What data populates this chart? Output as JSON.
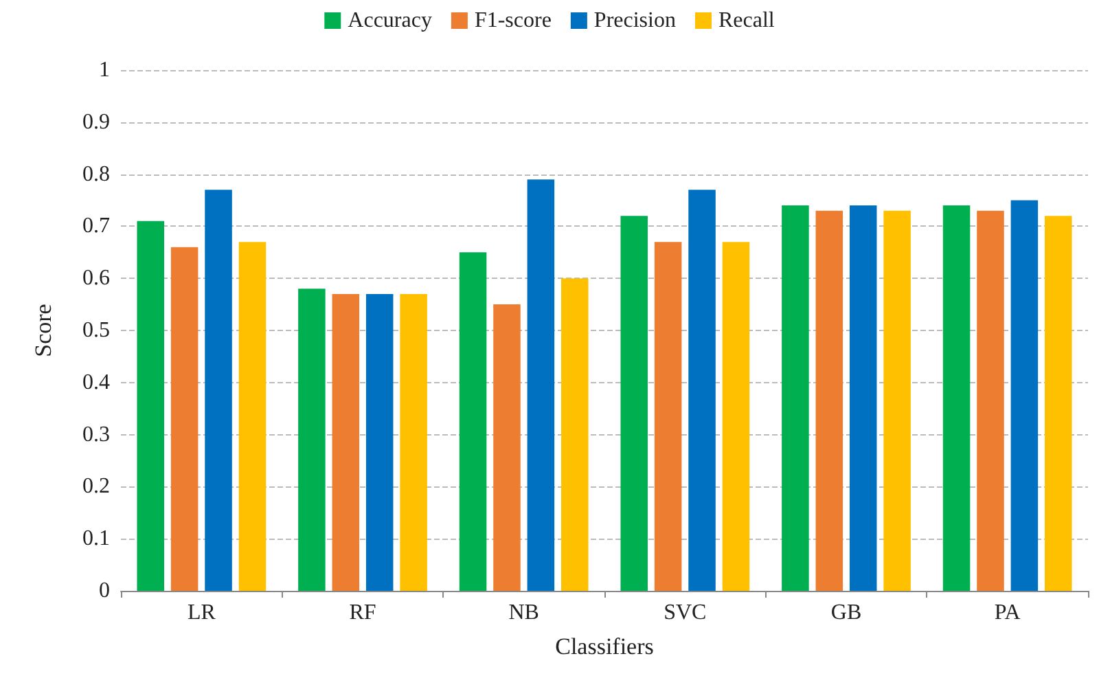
{
  "chart_data": {
    "type": "bar",
    "xlabel": "Classifiers",
    "ylabel": "Score",
    "categories": [
      "LR",
      "RF",
      "NB",
      "SVC",
      "GB",
      "PA"
    ],
    "series": [
      {
        "name": "Accuracy",
        "color": "#00b050",
        "values": [
          0.71,
          0.58,
          0.65,
          0.72,
          0.74,
          0.74
        ]
      },
      {
        "name": "F1-score",
        "color": "#ed7d31",
        "values": [
          0.66,
          0.57,
          0.55,
          0.67,
          0.73,
          0.73
        ]
      },
      {
        "name": "Precision",
        "color": "#0070c0",
        "values": [
          0.77,
          0.57,
          0.79,
          0.77,
          0.74,
          0.75
        ]
      },
      {
        "name": "Recall",
        "color": "#ffc000",
        "values": [
          0.67,
          0.57,
          0.6,
          0.67,
          0.73,
          0.72
        ]
      }
    ],
    "ylim": [
      0,
      1
    ],
    "yticks": [
      0,
      0.1,
      0.2,
      0.3,
      0.4,
      0.5,
      0.6,
      0.7,
      0.8,
      0.9,
      1
    ],
    "grid": "y",
    "legend": "top"
  }
}
